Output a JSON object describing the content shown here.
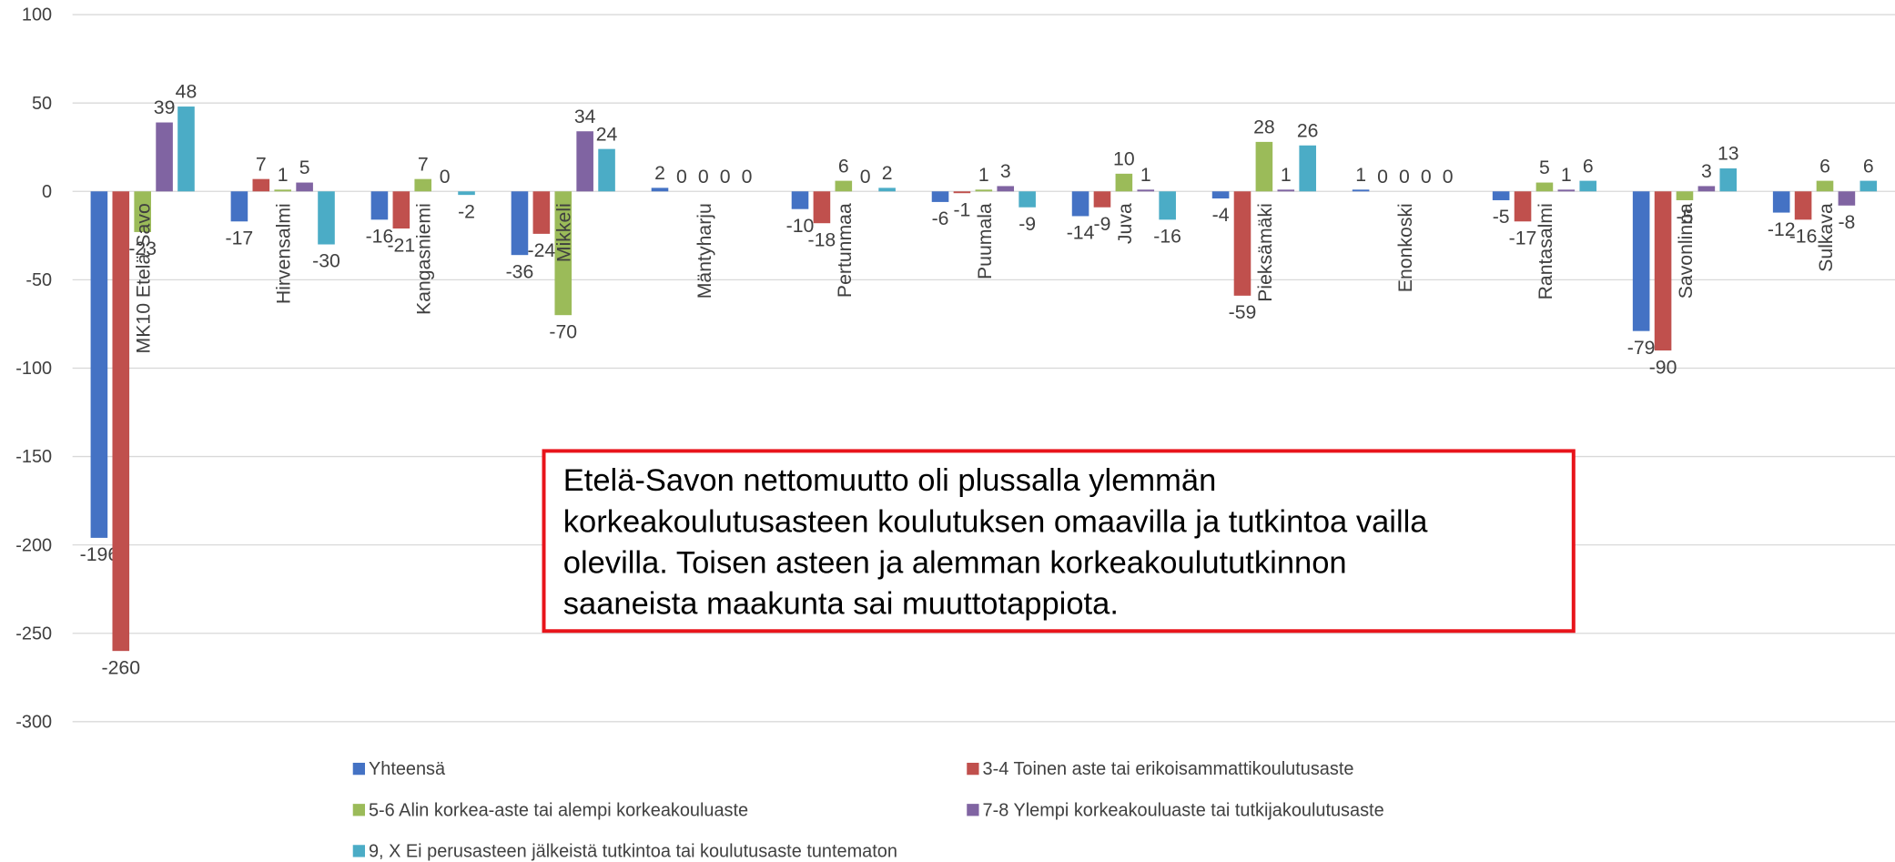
{
  "chart_data": {
    "type": "bar",
    "categories": [
      "MK10 Etelä-Savo",
      "Hirvensalmi",
      "Kangasniemi",
      "Mikkeli",
      "Mäntyharju",
      "Pertunmaa",
      "Puumala",
      "Juva",
      "Pieksämäki",
      "Enonkoski",
      "Rantasalmi",
      "Savonlinna",
      "Sulkava"
    ],
    "series": [
      {
        "name": "Yhteensä",
        "color": "#4472c4",
        "values": [
          -196,
          -17,
          -16,
          -36,
          2,
          -10,
          -6,
          -14,
          -4,
          1,
          -5,
          -79,
          -12
        ]
      },
      {
        "name": "3-4 Toinen aste tai erikoisammattikoulutusaste",
        "color": "#c0504d",
        "values": [
          -260,
          7,
          -21,
          -24,
          0,
          -18,
          -1,
          -9,
          -59,
          0,
          -17,
          -90,
          -16
        ]
      },
      {
        "name": "5-6 Alin korkea-aste tai alempi korkeakouluaste",
        "color": "#9bbb59",
        "values": [
          -23,
          1,
          7,
          -70,
          0,
          6,
          1,
          10,
          28,
          0,
          5,
          -5,
          6
        ]
      },
      {
        "name": "7-8 Ylempi korkeakouluaste tai tutkijakoulutusaste",
        "color": "#8064a2",
        "values": [
          39,
          5,
          0,
          34,
          0,
          0,
          3,
          1,
          1,
          0,
          1,
          3,
          -8
        ]
      },
      {
        "name": "9, X Ei perusasteen jälkeistä tutkintoa tai koulutusaste tuntematon",
        "color": "#4bacc6",
        "values": [
          48,
          -30,
          -2,
          24,
          0,
          2,
          -9,
          -16,
          26,
          0,
          6,
          13,
          6
        ]
      }
    ],
    "ylim": [
      -300,
      100
    ],
    "yticks": [
      -300,
      -250,
      -200,
      -150,
      -100,
      -50,
      0,
      50,
      100
    ],
    "grid": true,
    "legend": "bottom",
    "annotation": [
      "Etelä-Savon nettomuutto oli plussalla ylemmän",
      "korkeakoulutusasteen koulutuksen omaavilla ja tutkintoa vailla",
      "olevilla. Toisen asteen ja alemman korkeakoulututkinnon",
      "saaneista maakunta sai muuttotappiota."
    ]
  }
}
